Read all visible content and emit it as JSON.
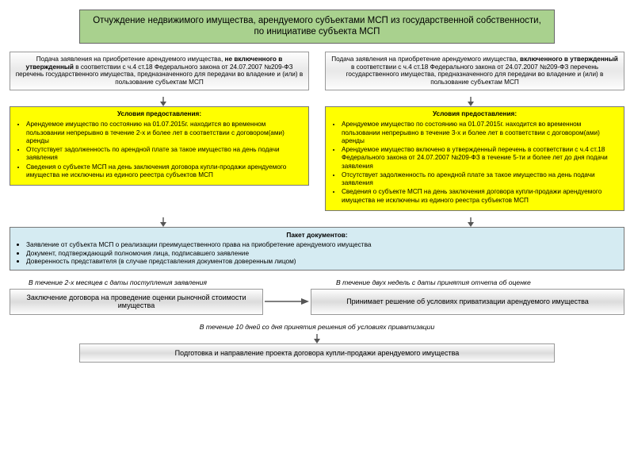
{
  "colors": {
    "title_bg": "#a9d18e",
    "yellow": "#ffff00",
    "package_bg": "#d5ebf2",
    "gradient_light": "#fdfdfd",
    "gradient_mid": "#dcdcdc",
    "border": "#777777",
    "arrow": "#555555"
  },
  "title": "Отчуждение недвижимого имущества, арендуемого субъектами МСП из государственной собственности, по инициативе субъекта МСП",
  "columns": {
    "left": {
      "application": "Подача заявления на приобретение арендуемого имущества, <b>не включенного в утвержденный</b> в соответствии с ч.4 ст.18 Федерального закона от 24.07.2007 №209-ФЗ перечень государственного имущества, предназначенного для передачи во владение и (или) в пользование субъектам МСП",
      "conditions_header": "Условия предоставления:",
      "conditions": [
        "Арендуемое имущество по состоянию на 01.07.2015г. находится во временном пользовании непрерывно в течение 2-х и более лет в соответствии с договором(ами) аренды",
        "Отсутствует задолженность по арендной плате за такое имущество на день подачи заявления",
        "Сведения о субъекте МСП на день заключения договора купли-продажи арендуемого имущества не исключены из единого реестра субъектов МСП"
      ]
    },
    "right": {
      "application": "Подача заявления на приобретение арендуемого имущества, <b>включенного в утвержденный</b> в соответствии с ч.4 ст.18 Федерального закона от 24.07.2007 №209-ФЗ перечень государственного имущества, предназначенного для передачи во владение и (или) в пользование субъектам МСП",
      "conditions_header": "Условия предоставления:",
      "conditions": [
        "Арендуемое имущество по состоянию на 01.07.2015г. находится во временном пользовании непрерывно в течение 3-х и более лет в соответствии с договором(ами) аренды",
        "Арендуемое имущество включено в утвержденный перечень в соответствии с ч.4 ст.18 Федерального закона от 24.07.2007 №209-ФЗ в течение 5-ти и более лет до дня подачи заявления",
        "Отсутствует задолженность по арендной плате за такое имущество на день подачи заявления",
        "Сведения о субъекте МСП на день заключения договора купли-продажи арендуемого имущества не исключены из единого реестра субъектов МСП"
      ]
    }
  },
  "package": {
    "header": "Пакет документов:",
    "items": [
      "Заявление от субъекта МСП о реализации преимущественного права на приобретение арендуемого имущества",
      "Документ, подтверждающий полномочия лица, подписавшего заявление",
      "Доверенность представителя (в случае представления документов доверенным лицом)"
    ]
  },
  "notes": {
    "left": "В течение 2-х месяцев с даты поступления заявления",
    "right": "В течение двух недель  с даты принятия отчета об оценке",
    "center": "В течение 10 дней со дня принятия решения об условиях приватизации"
  },
  "steps": {
    "left": "Заключение договора на проведение оценки рыночной стоимости имущества",
    "right": "Принимает решение об условиях приватизации арендуемого имущества",
    "final": "Подготовка и направление проекта договора купли-продажи арендуемого имущества"
  }
}
